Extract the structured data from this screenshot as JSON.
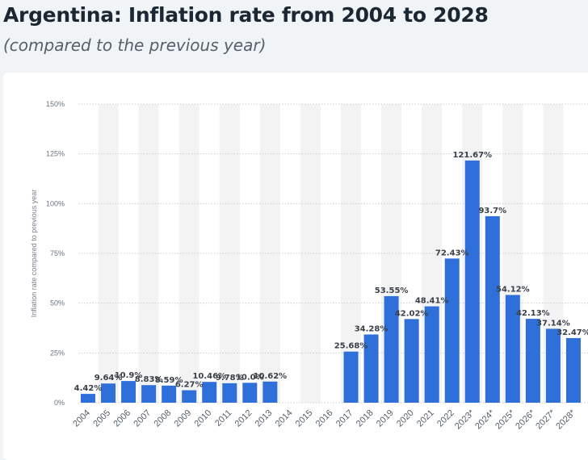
{
  "header": {
    "title": "Argentina: Inflation rate from 2004 to 2028",
    "subtitle": "(compared to the previous year)"
  },
  "colors": {
    "bar": "#2f6fd9",
    "band": "#f3f3f3",
    "grid": "#c9ced4"
  },
  "chart_data": {
    "type": "bar",
    "ylabel": "Inflation rate compared to previous year",
    "ylim": [
      0,
      150
    ],
    "yticks": [
      0,
      25,
      50,
      75,
      100,
      125,
      150
    ],
    "ytick_labels": [
      "0%",
      "25%",
      "50%",
      "75%",
      "100%",
      "125%",
      "150%"
    ],
    "grid": true,
    "categories": [
      "2004",
      "2005",
      "2006",
      "2007",
      "2008",
      "2009",
      "2010",
      "2011",
      "2012",
      "2013",
      "2014",
      "2015",
      "2016",
      "2017",
      "2018",
      "2019",
      "2020",
      "2021",
      "2022",
      "2023*",
      "2024*",
      "2025*",
      "2026*",
      "2027*",
      "2028*"
    ],
    "values": [
      4.42,
      9.64,
      10.9,
      8.83,
      8.59,
      6.27,
      10.46,
      9.78,
      10.0,
      10.62,
      null,
      null,
      null,
      25.68,
      34.28,
      53.55,
      42.02,
      48.41,
      72.43,
      121.67,
      93.7,
      54.12,
      42.13,
      37.14,
      32.47
    ],
    "labels": [
      "4.42%",
      "9.64%",
      "10.9%",
      "8.83%",
      "8.59%",
      "6.27%",
      "10.46%",
      "9.78%",
      "10.0%",
      "10.62%",
      "",
      "",
      "",
      "25.68%",
      "34.28%",
      "53.55%",
      "42.02%",
      "48.41%",
      "72.43%",
      "121.67%",
      "93.7%",
      "54.12%",
      "42.13%",
      "37.14%",
      "32.47%"
    ]
  }
}
